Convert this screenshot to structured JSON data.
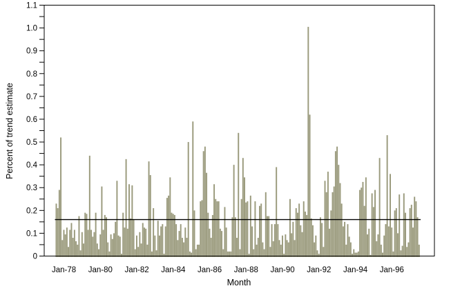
{
  "figure": {
    "background_color": "#ffffff",
    "axis_color": "#000000",
    "bar_color": "#9a9a7c",
    "reference_line_color": "#000000"
  },
  "chart_data": {
    "type": "bar",
    "title": "",
    "xlabel": "Month",
    "ylabel": "Percent of trend estimate",
    "ylim": [
      0,
      1.1
    ],
    "y_tick_step": 0.1,
    "y_minor_tick_step": 0.05,
    "y_tick_labels": [
      "0",
      "0.1",
      "0.2",
      "0.3",
      "0.4",
      "0.5",
      "0.6",
      "0.7",
      "0.8",
      "0.9",
      "1.0",
      "1.1"
    ],
    "x_tick_labels": [
      "Jan-78",
      "Jan-80",
      "Jan-82",
      "Jan-84",
      "Jan-86",
      "Jan-88",
      "Jan-90",
      "Jan-92",
      "Jan-94",
      "Jan-96"
    ],
    "x_tick_month_indices": [
      5,
      29,
      53,
      77,
      101,
      125,
      149,
      173,
      197,
      221
    ],
    "frequency": "monthly",
    "start_month": "Aug-1977",
    "reference_line_value": 0.16,
    "grid": false,
    "legend": "none",
    "values": [
      0.23,
      0.21,
      0.29,
      0.52,
      0.07,
      0.115,
      0.095,
      0.125,
      0.04,
      0.115,
      0.145,
      0.08,
      0.115,
      0.065,
      0.05,
      0.175,
      0.025,
      0.105,
      0.055,
      0.19,
      0.185,
      0.115,
      0.44,
      0.115,
      0.085,
      0.105,
      0.19,
      0.055,
      0.03,
      0.095,
      0.305,
      0.115,
      0.18,
      0.17,
      0.06,
      0.02,
      0.095,
      0.075,
      0.1,
      0.15,
      0.33,
      0.09,
      0.085,
      0.01,
      0.19,
      0.125,
      0.425,
      0.12,
      0.315,
      0.165,
      0.31,
      0.16,
      0.03,
      0.09,
      0.04,
      0.105,
      0.055,
      0.145,
      0.125,
      0.12,
      0.05,
      0.415,
      0.355,
      0.02,
      0.21,
      0.09,
      0.025,
      0.155,
      0.09,
      0.13,
      0.14,
      0.01,
      0.13,
      0.255,
      0.265,
      0.345,
      0.19,
      0.185,
      0.18,
      0.14,
      0.07,
      0.11,
      0.14,
      0.08,
      0.06,
      0.125,
      0.08,
      0.5,
      0.02,
      0.015,
      0.59,
      0.2,
      0.03,
      0.05,
      0.05,
      0.24,
      0.245,
      0.46,
      0.48,
      0.365,
      0.19,
      0.12,
      0.08,
      0.18,
      0.315,
      0.25,
      0.24,
      0.24,
      0.12,
      0.11,
      0.03,
      0.215,
      0.125,
      0.02,
      0.02,
      0.02,
      0.17,
      0.4,
      0.17,
      0.08,
      0.54,
      0.03,
      0.25,
      0.43,
      0.345,
      0.235,
      0.24,
      0.01,
      0.265,
      0.13,
      0.03,
      0.24,
      0.05,
      0.08,
      0.22,
      0.23,
      0.06,
      0.03,
      0.28,
      0.175,
      0.175,
      0.04,
      0.14,
      0.065,
      0.14,
      0.39,
      0.14,
      0.07,
      0.05,
      0.09,
      0.01,
      0.095,
      0.07,
      0.06,
      0.25,
      0.1,
      0.15,
      0.07,
      0.21,
      0.19,
      0.23,
      0.135,
      0.105,
      0.24,
      0.195,
      0.18,
      1.005,
      0.62,
      0.165,
      0.135,
      0.06,
      0.09,
      0.025,
      0.01,
      0.17,
      0.145,
      0.04,
      0.33,
      0.28,
      0.37,
      0.12,
      0.2,
      0.28,
      0.305,
      0.46,
      0.48,
      0.4,
      0.32,
      0.23,
      0.13,
      0.15,
      0.05,
      0.14,
      0.085,
      0.06,
      0.01,
      0.03,
      0.015,
      0.015,
      0.02,
      0.29,
      0.3,
      0.325,
      0.22,
      0.345,
      0.095,
      0.12,
      0.005,
      0.275,
      0.215,
      0.29,
      0.065,
      0.095,
      0.43,
      0.05,
      0.015,
      0.09,
      0.14,
      0.53,
      0.13,
      0.36,
      0.125,
      0.02,
      0.2,
      0.21,
      0.1,
      0.27,
      0.025,
      0.045,
      0.275,
      0.19,
      0.04,
      0.06,
      0.21,
      0.225,
      0.125,
      0.26,
      0.24,
      0.17,
      0.05
    ]
  }
}
